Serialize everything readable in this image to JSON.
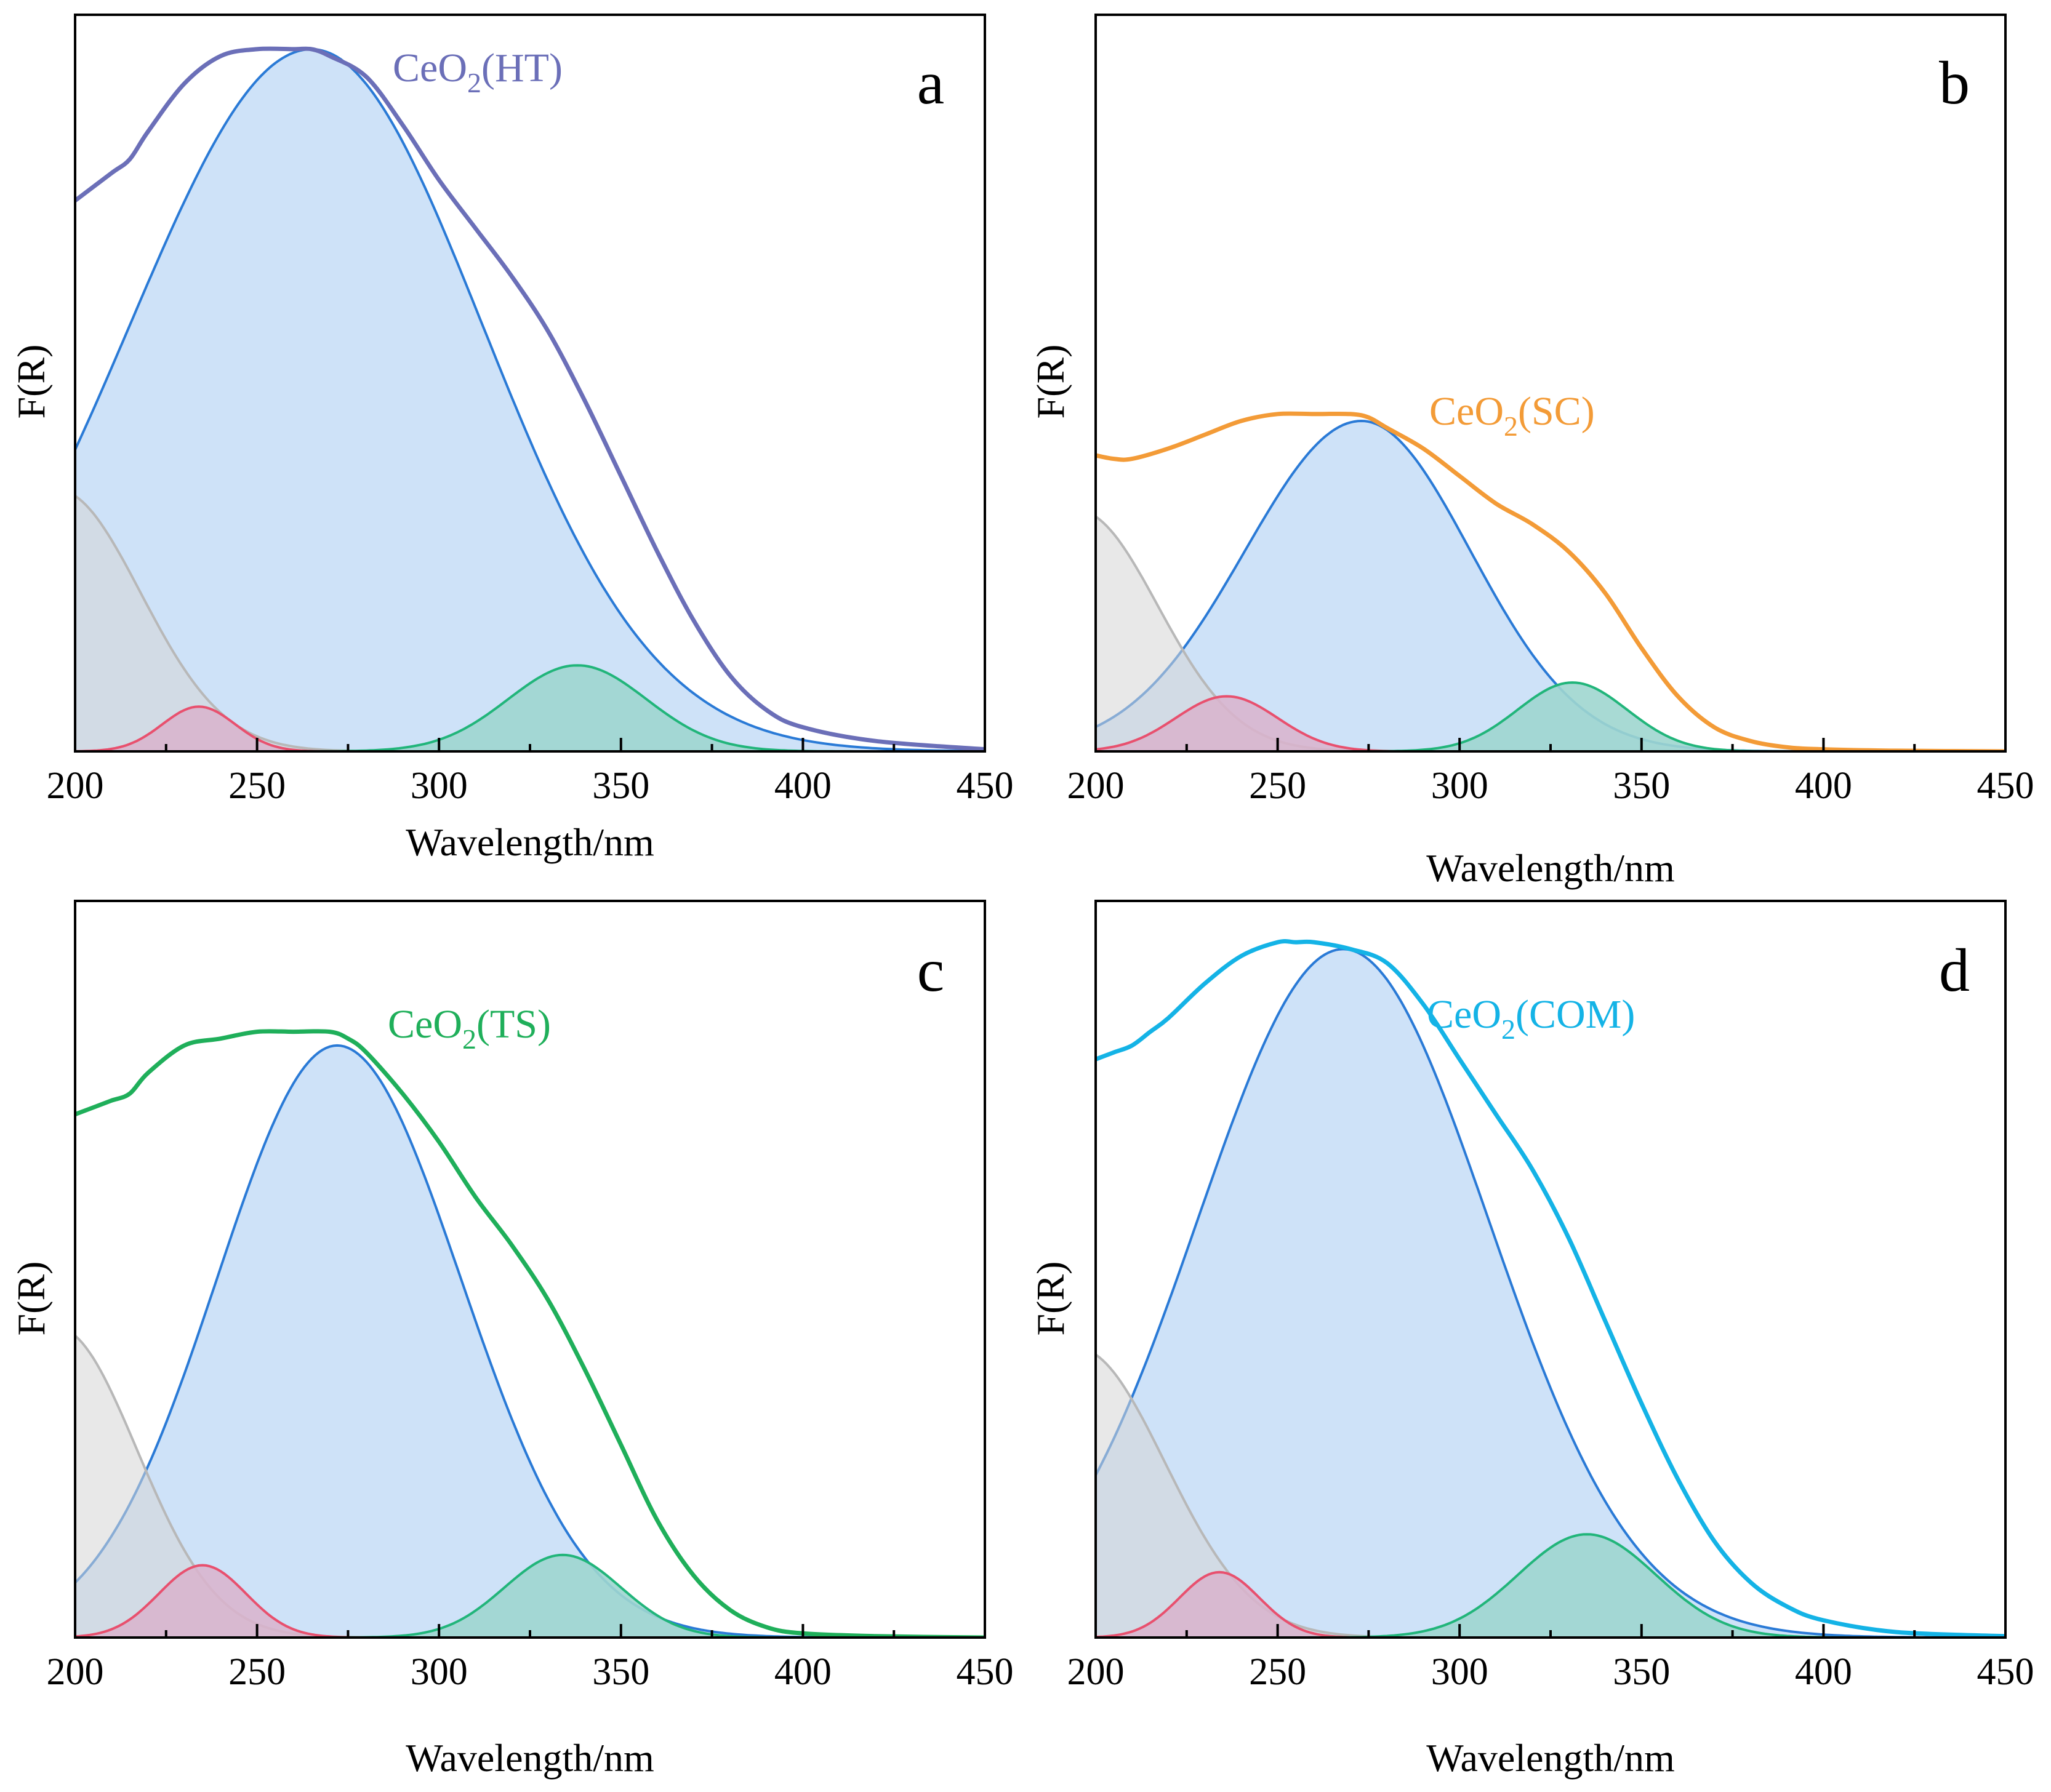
{
  "colors": {
    "axis": "#000000",
    "main_fill": "#c9dff7",
    "main_line": "#2a7ad6",
    "green_fill": "#9fd6cf",
    "green_line": "#21b57a",
    "pink_fill": "#d9b3cd",
    "pink_line": "#e8506e",
    "gray_fill": "#d6d6d6",
    "gray_line": "#b8b8b8"
  },
  "chart_data": [
    {
      "panel": "a",
      "type": "line",
      "title": "a",
      "xlabel": "Wavelength/nm",
      "ylabel": "F(R)",
      "xlim": [
        200,
        450
      ],
      "ylim": [
        0,
        1.07
      ],
      "xticks": [
        "200",
        "250",
        "300",
        "350",
        "400",
        "450"
      ],
      "series_label": {
        "base": "CeO",
        "sub": "2",
        "tail": "(HT)",
        "color": "#6b6fb8"
      },
      "measured": {
        "name": "CeO2(HT)",
        "color": "#6b6fb8",
        "x": [
          200,
          210,
          215,
          220,
          230,
          240,
          250,
          260,
          265,
          270,
          280,
          290,
          300,
          310,
          320,
          330,
          340,
          350,
          360,
          370,
          380,
          390,
          400,
          420,
          450
        ],
        "y": [
          0.8,
          0.84,
          0.86,
          0.9,
          0.97,
          1.01,
          1.02,
          1.02,
          1.02,
          1.01,
          0.98,
          0.91,
          0.83,
          0.76,
          0.69,
          0.61,
          0.51,
          0.4,
          0.29,
          0.19,
          0.11,
          0.06,
          0.035,
          0.015,
          0.003
        ]
      },
      "components": [
        {
          "name": "gray",
          "center": 195,
          "amp": 0.38,
          "sigma": 23
        },
        {
          "name": "pink",
          "center": 234,
          "amp": 0.065,
          "sigma": 10
        },
        {
          "name": "main",
          "center": 265,
          "amp": 1.02,
          "sigma": 50,
          "tail_sigma": 47
        },
        {
          "name": "green",
          "center": 338,
          "amp": 0.125,
          "sigma": 19
        }
      ]
    },
    {
      "panel": "b",
      "type": "line",
      "title": "b",
      "xlabel": "Wavelength/nm",
      "ylabel": "F(R)",
      "xlim": [
        200,
        450
      ],
      "ylim": [
        0,
        1.07
      ],
      "xticks": [
        "200",
        "250",
        "300",
        "350",
        "400",
        "450"
      ],
      "series_label": {
        "base": "CeO",
        "sub": "2",
        "tail": "(SC)",
        "color": "#f39b37"
      },
      "measured": {
        "name": "CeO2(SC)",
        "color": "#f39b37",
        "x": [
          200,
          205,
          210,
          220,
          230,
          240,
          250,
          260,
          270,
          275,
          280,
          290,
          300,
          310,
          320,
          330,
          340,
          350,
          360,
          370,
          380,
          390,
          400,
          420,
          450
        ],
        "y": [
          0.43,
          0.425,
          0.425,
          0.44,
          0.46,
          0.48,
          0.49,
          0.49,
          0.49,
          0.485,
          0.47,
          0.44,
          0.4,
          0.36,
          0.33,
          0.29,
          0.23,
          0.15,
          0.08,
          0.035,
          0.015,
          0.006,
          0.003,
          0.001,
          0.0
        ]
      },
      "components": [
        {
          "name": "gray",
          "center": 195,
          "amp": 0.35,
          "sigma": 22
        },
        {
          "name": "pink",
          "center": 236,
          "amp": 0.08,
          "sigma": 14
        },
        {
          "name": "main",
          "center": 273,
          "amp": 0.48,
          "sigma": 32,
          "tail_sigma": 30
        },
        {
          "name": "green",
          "center": 331,
          "amp": 0.1,
          "sigma": 15
        }
      ]
    },
    {
      "panel": "c",
      "type": "line",
      "title": "c",
      "xlabel": "Wavelength/nm",
      "ylabel": "F(R)",
      "xlim": [
        200,
        450
      ],
      "ylim": [
        0,
        1.07
      ],
      "xticks": [
        "200",
        "250",
        "300",
        "350",
        "400",
        "450"
      ],
      "series_label": {
        "base": "CeO",
        "sub": "2",
        "tail": "(TS)",
        "color": "#1faf5a"
      },
      "measured": {
        "name": "CeO2(TS)",
        "color": "#1faf5a",
        "x": [
          200,
          205,
          210,
          215,
          220,
          230,
          240,
          250,
          260,
          270,
          275,
          280,
          290,
          300,
          310,
          320,
          330,
          340,
          350,
          360,
          370,
          380,
          390,
          400,
          420,
          450
        ],
        "y": [
          0.76,
          0.77,
          0.78,
          0.79,
          0.82,
          0.86,
          0.87,
          0.88,
          0.88,
          0.88,
          0.87,
          0.85,
          0.79,
          0.72,
          0.64,
          0.57,
          0.49,
          0.39,
          0.28,
          0.17,
          0.09,
          0.04,
          0.015,
          0.006,
          0.002,
          0.0
        ]
      },
      "components": [
        {
          "name": "gray",
          "center": 195,
          "amp": 0.45,
          "sigma": 22
        },
        {
          "name": "pink",
          "center": 235,
          "amp": 0.105,
          "sigma": 12
        },
        {
          "name": "main",
          "center": 272,
          "amp": 0.86,
          "sigma": 33,
          "tail_sigma": 34
        },
        {
          "name": "green",
          "center": 334,
          "amp": 0.12,
          "sigma": 16
        }
      ]
    },
    {
      "panel": "d",
      "type": "line",
      "title": "d",
      "xlabel": "Wavelength/nm",
      "ylabel": "F(R)",
      "xlim": [
        200,
        450
      ],
      "ylim": [
        0,
        1.07
      ],
      "xticks": [
        "200",
        "250",
        "300",
        "350",
        "400",
        "450"
      ],
      "series_label": {
        "base": "CeO",
        "sub": "2",
        "tail": "(COM)",
        "color": "#14b3e6"
      },
      "measured": {
        "name": "CeO2(COM)",
        "color": "#14b3e6",
        "x": [
          200,
          205,
          210,
          215,
          220,
          230,
          240,
          250,
          255,
          260,
          270,
          280,
          290,
          300,
          310,
          320,
          330,
          340,
          350,
          360,
          370,
          380,
          390,
          400,
          420,
          450
        ],
        "y": [
          0.84,
          0.85,
          0.86,
          0.88,
          0.9,
          0.95,
          0.99,
          1.01,
          1.01,
          1.01,
          1.0,
          0.98,
          0.92,
          0.84,
          0.76,
          0.68,
          0.58,
          0.46,
          0.34,
          0.23,
          0.14,
          0.08,
          0.045,
          0.025,
          0.008,
          0.002
        ]
      },
      "components": [
        {
          "name": "gray",
          "center": 195,
          "amp": 0.42,
          "sigma": 24
        },
        {
          "name": "pink",
          "center": 234,
          "amp": 0.095,
          "sigma": 11
        },
        {
          "name": "main",
          "center": 268,
          "amp": 1.0,
          "sigma": 40,
          "tail_sigma": 40
        },
        {
          "name": "green",
          "center": 335,
          "amp": 0.15,
          "sigma": 19
        }
      ]
    }
  ]
}
